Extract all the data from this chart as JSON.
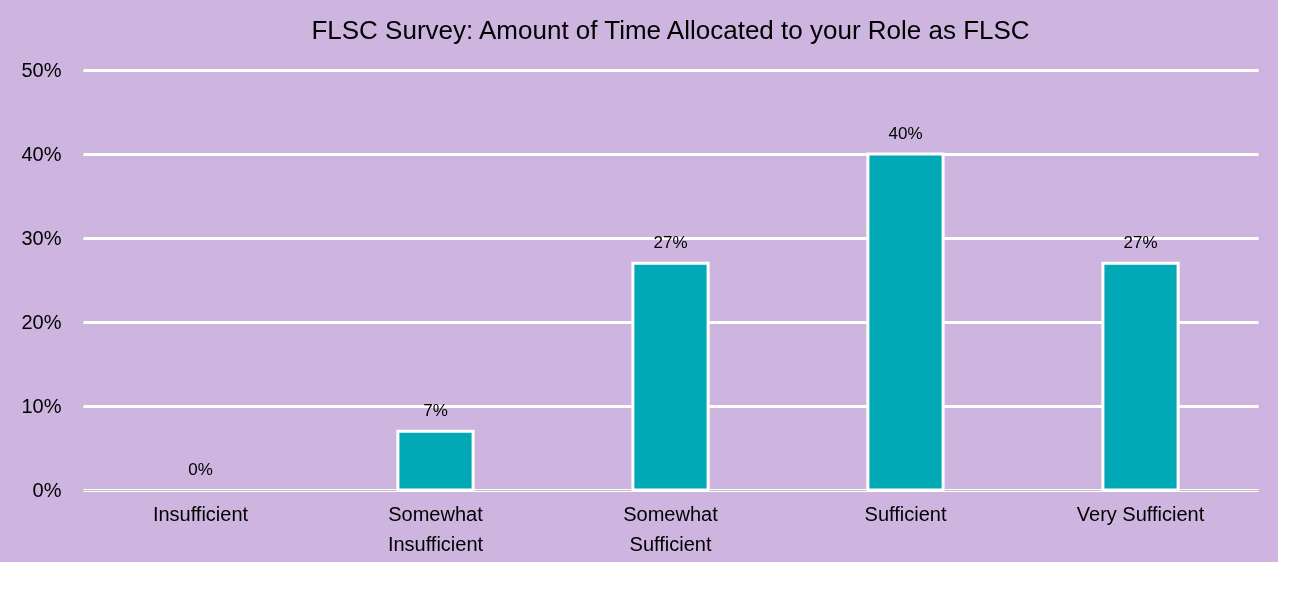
{
  "chart_data": {
    "type": "bar",
    "title": "FLSC Survey: Amount of Time Allocated to your Role as FLSC",
    "categories": [
      "Insufficient",
      "Somewhat Insufficient",
      "Somewhat Sufficient",
      "Sufficient",
      "Very Sufficient"
    ],
    "values": [
      0,
      7,
      27,
      40,
      27
    ],
    "value_labels": [
      "0%",
      "7%",
      "27%",
      "40%",
      "27%"
    ],
    "color": "#00a9b5",
    "ylim": [
      0,
      50
    ],
    "yticks": [
      {
        "value": 0,
        "label": "0%"
      },
      {
        "value": 10,
        "label": "10%"
      },
      {
        "value": 20,
        "label": "20%"
      },
      {
        "value": 30,
        "label": "30%"
      },
      {
        "value": 40,
        "label": "40%"
      },
      {
        "value": 50,
        "label": "50%"
      }
    ],
    "grid": "y"
  }
}
